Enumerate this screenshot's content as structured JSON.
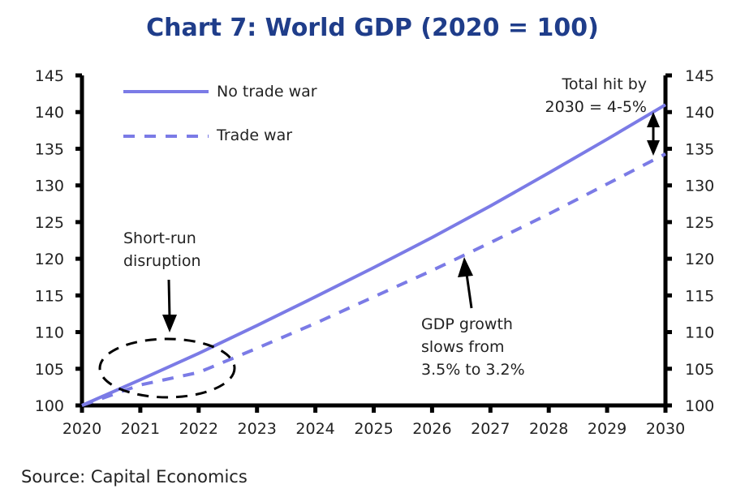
{
  "chart_data": {
    "type": "line",
    "title": "Chart 7: World GDP (2020 = 100)",
    "xlabel": "",
    "ylabel": "",
    "x": [
      2020,
      2021,
      2022,
      2023,
      2024,
      2025,
      2026,
      2027,
      2028,
      2029,
      2030
    ],
    "xlim": [
      2020,
      2030
    ],
    "ylim": [
      100,
      145
    ],
    "yticks": [
      100,
      105,
      110,
      115,
      120,
      125,
      130,
      135,
      140,
      145
    ],
    "xticks": [
      "2020",
      "2021",
      "2022",
      "2023",
      "2024",
      "2025",
      "2026",
      "2027",
      "2028",
      "2029",
      "2030"
    ],
    "grid": false,
    "legend_position": "top-left",
    "series": [
      {
        "name": "No trade war",
        "style": "solid",
        "color": "#7b7be6",
        "values": [
          100,
          103.5,
          107.1,
          110.9,
          114.8,
          118.8,
          122.9,
          127.2,
          131.7,
          136.3,
          141.0
        ]
      },
      {
        "name": "Trade war",
        "style": "dashed",
        "color": "#7b7be6",
        "values": [
          100,
          102.8,
          104.5,
          107.8,
          111.2,
          114.8,
          118.4,
          122.2,
          126.1,
          130.2,
          134.3
        ]
      }
    ],
    "annotations": [
      {
        "id": "total-hit",
        "lines": [
          "Total hit by",
          "2030 = 4-5%"
        ]
      },
      {
        "id": "short-run",
        "lines": [
          "Short-run",
          "disruption"
        ]
      },
      {
        "id": "gdp-growth",
        "lines": [
          "GDP growth",
          "slows from",
          "3.5% to 3.2%"
        ]
      }
    ],
    "source": "Source: Capital Economics"
  }
}
